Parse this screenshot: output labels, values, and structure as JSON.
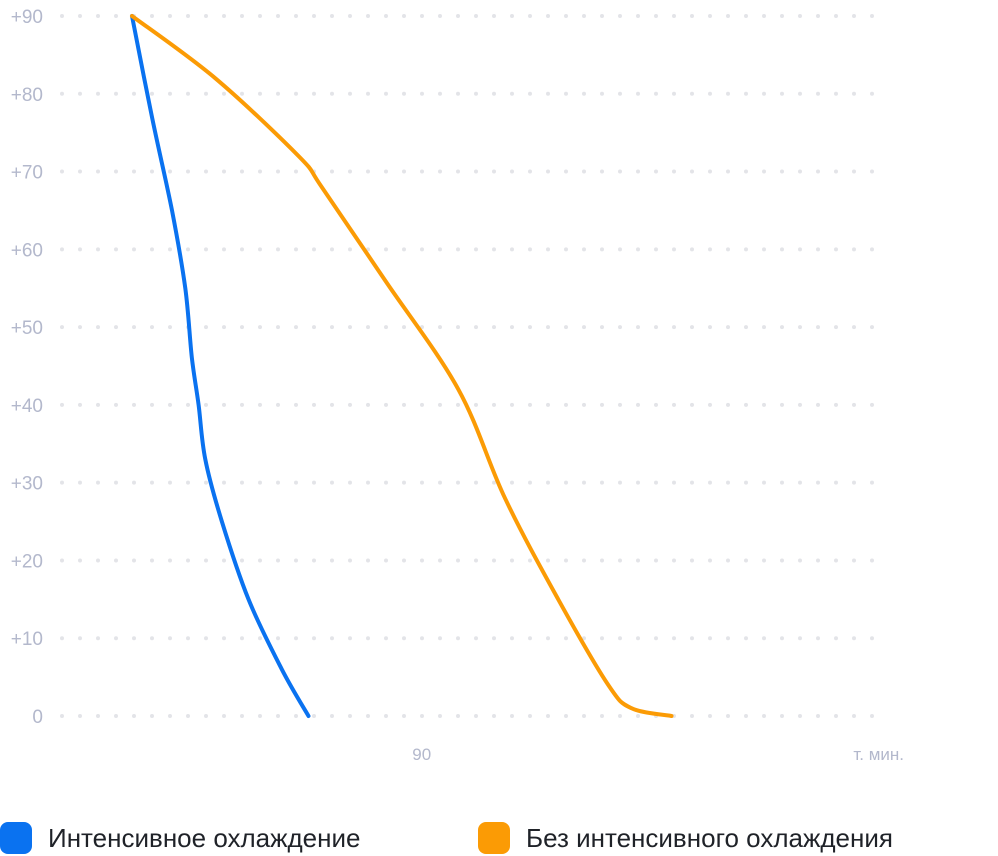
{
  "chart_data": {
    "type": "line",
    "title": "",
    "xlabel": "т. мин.",
    "ylabel": "",
    "y_ticks": [
      "0",
      "+10",
      "+20",
      "+30",
      "+40",
      "+50",
      "+60",
      "+70",
      "+80",
      "+90"
    ],
    "y_tick_values": [
      0,
      10,
      20,
      30,
      40,
      50,
      60,
      70,
      80,
      90
    ],
    "x_ticks": [
      "90"
    ],
    "x_tick_values": [
      90
    ],
    "xlim": [
      0,
      197
    ],
    "ylim": [
      0,
      90
    ],
    "grid": true,
    "legend_position": "bottom",
    "series": [
      {
        "name": "Интенсивное охлаждение",
        "color": "#0a72f0",
        "x": [
          0,
          6,
          12,
          16,
          18,
          20,
          22,
          27,
          35,
          45,
          53
        ],
        "y": [
          90,
          77,
          65,
          55,
          46,
          40,
          33,
          25,
          15,
          6,
          0
        ]
      },
      {
        "name": "Без интенсивного охлаждения",
        "color": "#fb9b05",
        "x": [
          0,
          25,
          50,
          57,
          76,
          98,
          112,
          128,
          143,
          150,
          162
        ],
        "y": [
          90,
          82,
          72,
          68,
          56,
          42,
          28,
          15,
          4,
          1,
          0
        ]
      }
    ]
  }
}
